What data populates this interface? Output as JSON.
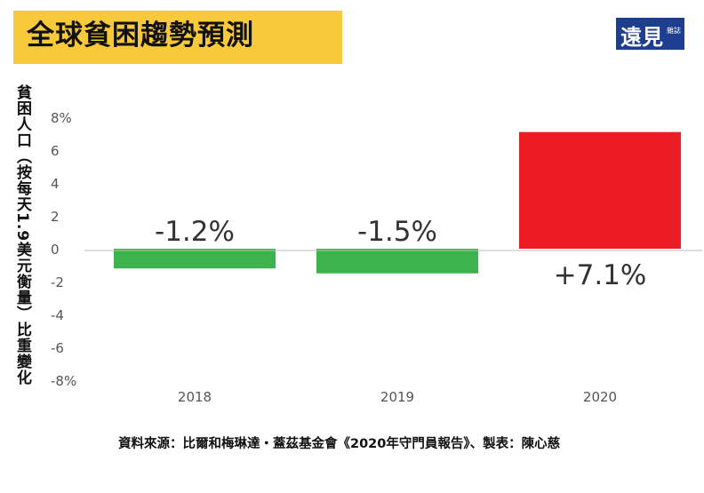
{
  "title": "全球貧困趨勢預測",
  "logo": {
    "text": "遠見",
    "subtext": "雜誌",
    "color": "#1e3f8f"
  },
  "source": "資料來源：比爾和梅琳達・蓋茲基金會《2020年守門員報告》、製表：陳心慈",
  "chart_data": {
    "type": "bar",
    "title": "全球貧困趨勢預測",
    "ylabel": "貧困人口（按每天1.9美元衡量）比重變化",
    "xlabel": "",
    "categories": [
      "2018",
      "2019",
      "2020"
    ],
    "values": [
      -1.2,
      -1.5,
      7.1
    ],
    "data_labels": [
      "-1.2%",
      "-1.5%",
      "+7.1%"
    ],
    "colors": [
      "#3cb44b",
      "#3cb44b",
      "#ec1c24"
    ],
    "ylim": [
      -8,
      8
    ],
    "yticks": [
      8,
      6,
      4,
      2,
      0,
      -2,
      -4,
      -6,
      -8
    ],
    "ytick_labels": [
      "8%",
      "6",
      "4",
      "2",
      "0",
      "-2",
      "-4",
      "-6",
      "-8%"
    ],
    "grid": false
  }
}
